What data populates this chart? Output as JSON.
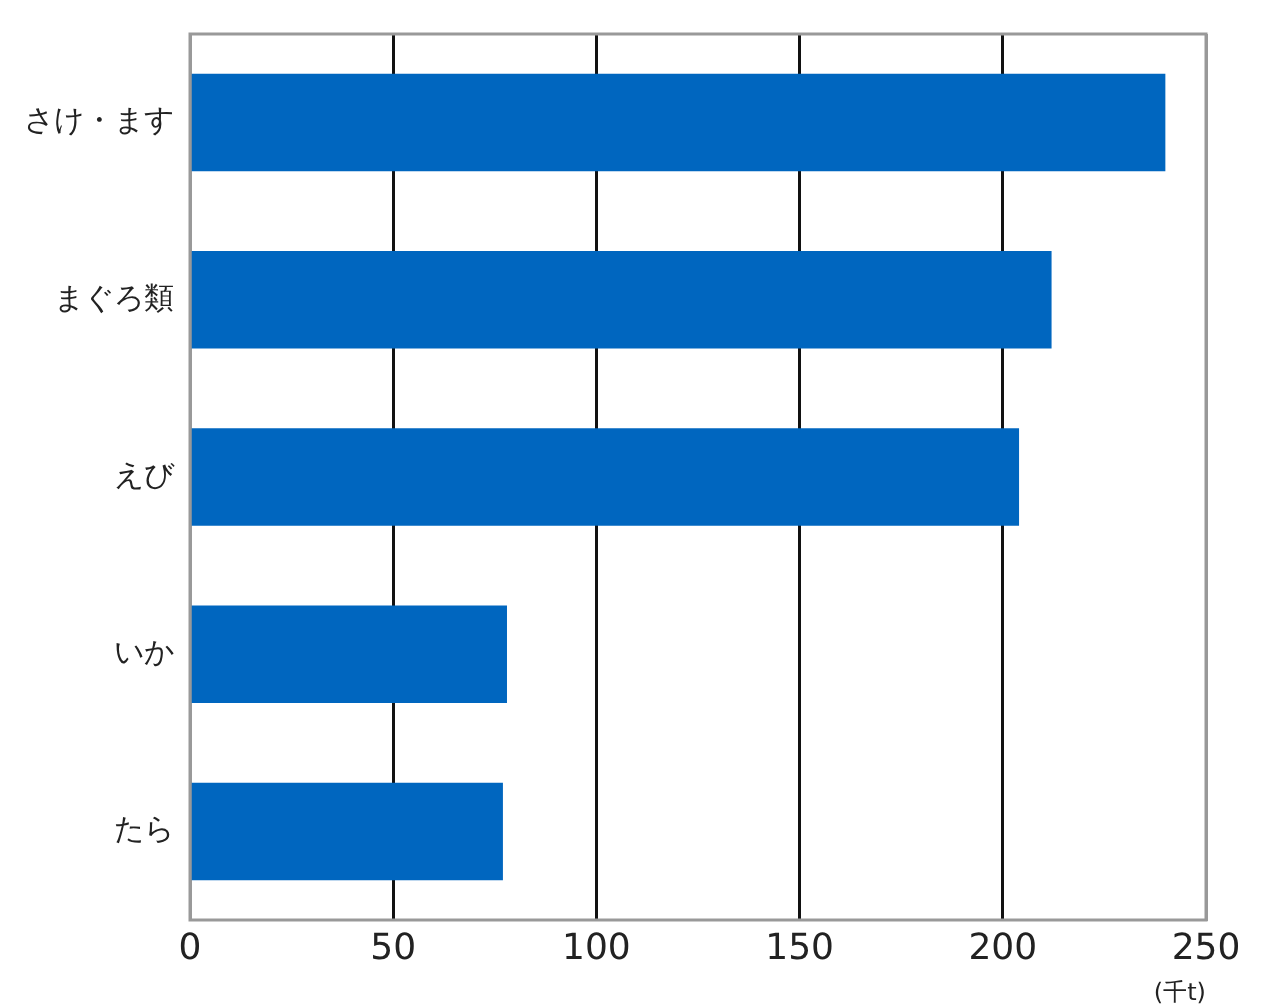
{
  "chart_data": {
    "type": "bar",
    "orientation": "horizontal",
    "xlabel": "(千t)",
    "categories": [
      "さけ・ます",
      "まぐろ類",
      "えび",
      "いか",
      "たら"
    ],
    "values": [
      240,
      212,
      204,
      78,
      77
    ],
    "color": "#0066bf",
    "xlim": [
      0,
      250
    ],
    "xticks": [
      0,
      50,
      100,
      150,
      200,
      250
    ],
    "grid": "x",
    "legend": false
  }
}
